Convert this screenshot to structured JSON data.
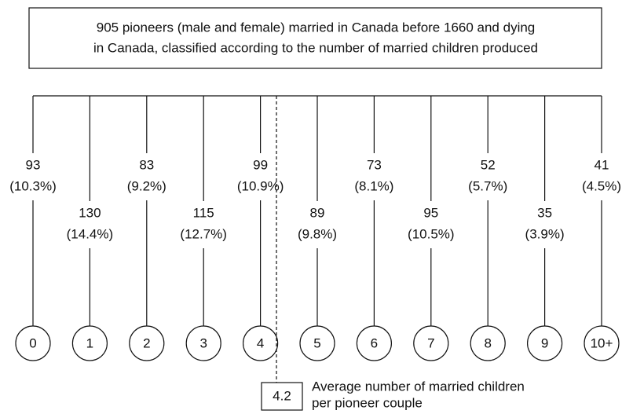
{
  "header": {
    "lines": [
      "905 pioneers (male and female) married in Canada before 1660 and dying",
      "in Canada, classified according to the number of married children produced"
    ]
  },
  "nodes": [
    {
      "label": "0",
      "count": 93,
      "percent": "(10.3%)"
    },
    {
      "label": "1",
      "count": 130,
      "percent": "(14.4%)"
    },
    {
      "label": "2",
      "count": 83,
      "percent": "(9.2%)"
    },
    {
      "label": "3",
      "count": 115,
      "percent": "(12.7%)"
    },
    {
      "label": "4",
      "count": 99,
      "percent": "(10.9%)"
    },
    {
      "label": "5",
      "count": 89,
      "percent": "(9.8%)"
    },
    {
      "label": "6",
      "count": 73,
      "percent": "(8.1%)"
    },
    {
      "label": "7",
      "count": 95,
      "percent": "(10.5%)"
    },
    {
      "label": "8",
      "count": 52,
      "percent": "(5.7%)"
    },
    {
      "label": "9",
      "count": 35,
      "percent": "(3.9%)"
    },
    {
      "label": "10+",
      "count": 41,
      "percent": "(4.5%)"
    }
  ],
  "average": {
    "value": "4.2",
    "caption": [
      "Average number of married children",
      "per pioneer couple"
    ]
  }
}
